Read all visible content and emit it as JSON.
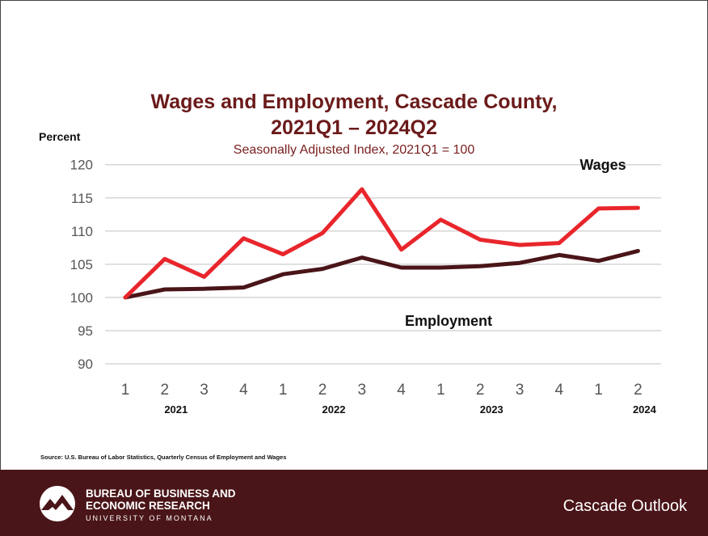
{
  "colors": {
    "wages": "#e8262c",
    "employment": "#4a1518",
    "title": "#6b1a1a",
    "footer_bg": "#4a1518"
  },
  "chart_data": {
    "type": "line",
    "title": "Wages and Employment, Cascade County,",
    "title_line2": "2021Q1 – 2024Q2",
    "subtitle": "Seasonally Adjusted Index, 2021Q1 = 100",
    "ylabel": "Percent",
    "ylim": [
      90,
      120
    ],
    "yticks": [
      "120",
      "115",
      "110",
      "105",
      "100",
      "95",
      "90"
    ],
    "categories": [
      "1",
      "2",
      "3",
      "4",
      "1",
      "2",
      "3",
      "4",
      "1",
      "2",
      "3",
      "4",
      "1",
      "2"
    ],
    "year_labels": [
      {
        "label": "2021",
        "quarter_index": 1
      },
      {
        "label": "2022",
        "quarter_index": 5
      },
      {
        "label": "2023",
        "quarter_index": 9
      },
      {
        "label": "2024",
        "quarter_index": 13
      }
    ],
    "grid": true,
    "series": [
      {
        "name": "Wages",
        "values": [
          100,
          105.8,
          103.1,
          108.9,
          106.5,
          109.7,
          116.3,
          107.2,
          111.7,
          108.7,
          107.9,
          108.2,
          113.4,
          113.5
        ]
      },
      {
        "name": "Employment",
        "values": [
          100,
          101.2,
          101.3,
          101.5,
          103.5,
          104.3,
          106.0,
          104.5,
          104.5,
          104.7,
          105.2,
          106.4,
          105.5,
          107.0
        ]
      }
    ]
  },
  "source": "Source:  U.S. Bureau of Labor Statistics, Quarterly Census of Employment and Wages",
  "footer": {
    "org_line1": "BUREAU OF BUSINESS AND",
    "org_line2": "ECONOMIC RESEARCH",
    "org_line3": "UNIVERSITY OF MONTANA",
    "outlook": "Cascade Outlook",
    "logo_icon": "mountain-logo-icon"
  }
}
